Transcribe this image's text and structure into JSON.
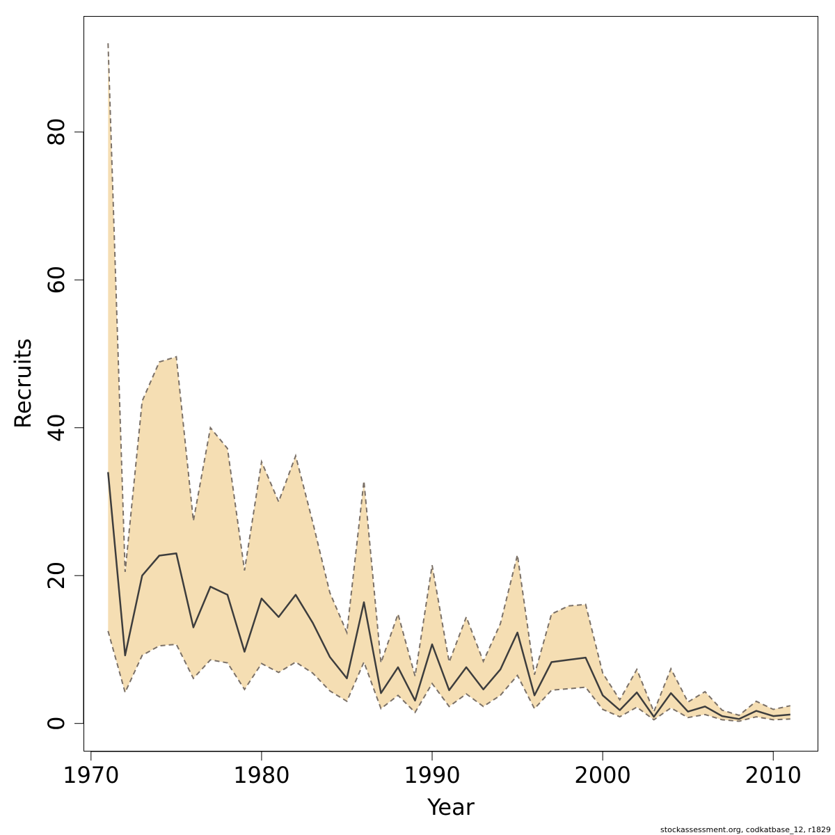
{
  "chart_data": {
    "type": "line",
    "xlabel": "Year",
    "ylabel": "Recruits",
    "xlim": [
      1969.6,
      2012.6
    ],
    "ylim": [
      -3.7,
      95.6
    ],
    "x_ticks": [
      1970,
      1980,
      1990,
      2000,
      2010
    ],
    "y_ticks": [
      0,
      20,
      40,
      60,
      80
    ],
    "grid": false,
    "legend": "none",
    "colors": {
      "band_fill": "#F5DEB3",
      "bound_line": "#7a7067",
      "median_line": "#3d3d3d"
    },
    "series": [
      {
        "values_x": [
          1971,
          1972,
          1973,
          1974,
          1975,
          1976,
          1977,
          1978,
          1979,
          1980,
          1981,
          1982,
          1983,
          1984,
          1985,
          1986,
          1987,
          1988,
          1989,
          1990,
          1991,
          1992,
          1993,
          1994,
          1995,
          1996,
          1997,
          1998,
          1999,
          2000,
          2001,
          2002,
          2003,
          2004,
          2005,
          2006,
          2007,
          2008,
          2009,
          2010,
          2011
        ],
        "median": [
          34.0,
          9.2,
          20.0,
          22.7,
          23.0,
          13.0,
          18.5,
          17.4,
          9.7,
          16.9,
          14.4,
          17.4,
          13.6,
          9.0,
          6.1,
          16.4,
          4.1,
          7.6,
          3.1,
          10.7,
          4.5,
          7.6,
          4.6,
          7.3,
          12.3,
          3.8,
          8.3,
          8.6,
          8.9,
          3.8,
          1.8,
          4.2,
          0.9,
          4.1,
          1.6,
          2.3,
          1.0,
          0.6,
          1.7,
          1.0,
          1.2
        ],
        "upper": [
          92.0,
          20.5,
          43.6,
          48.9,
          49.6,
          27.4,
          40.0,
          37.2,
          20.7,
          35.4,
          30.0,
          36.2,
          27.2,
          17.7,
          12.3,
          32.8,
          8.2,
          14.8,
          6.4,
          21.4,
          8.3,
          14.4,
          8.4,
          13.5,
          22.8,
          6.6,
          14.8,
          15.9,
          16.1,
          6.8,
          3.2,
          7.3,
          1.6,
          7.4,
          2.9,
          4.3,
          1.8,
          1.1,
          3.0,
          1.9,
          2.4
        ],
        "lower": [
          12.5,
          4.2,
          9.2,
          10.5,
          10.7,
          6.1,
          8.6,
          8.2,
          4.6,
          8.1,
          6.9,
          8.3,
          6.8,
          4.4,
          3.0,
          8.3,
          2.0,
          3.8,
          1.5,
          5.4,
          2.3,
          4.0,
          2.3,
          3.8,
          6.5,
          2.0,
          4.5,
          4.7,
          4.9,
          1.9,
          0.9,
          2.2,
          0.5,
          2.1,
          0.8,
          1.2,
          0.5,
          0.3,
          0.9,
          0.5,
          0.6
        ]
      }
    ]
  },
  "footer": "stockassessment.org, codkatbase_12, r1829"
}
